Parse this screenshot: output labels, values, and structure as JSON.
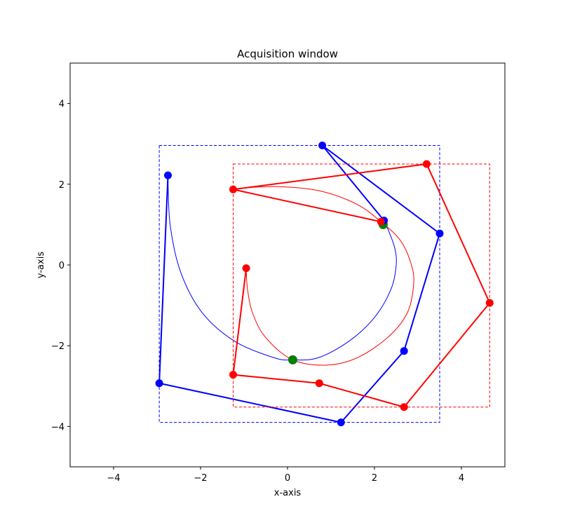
{
  "chart_data": {
    "type": "line",
    "title": "Acquisition window",
    "xlabel": "x-axis",
    "ylabel": "y-axis",
    "xlim": [
      -5,
      5
    ],
    "ylim": [
      -5,
      5
    ],
    "xticks": [
      -4,
      -2,
      0,
      2,
      4
    ],
    "yticks": [
      -4,
      -2,
      0,
      2,
      4
    ],
    "xtick_labels": [
      "−4",
      "−2",
      "0",
      "2",
      "4"
    ],
    "ytick_labels": [
      "−4",
      "−2",
      "0",
      "2",
      "4"
    ],
    "grid": false,
    "legend": "none",
    "series": [
      {
        "color": "#0000ff",
        "control_polygon": [
          [
            -2.75,
            2.22
          ],
          [
            -2.95,
            -2.93
          ],
          [
            1.23,
            -3.9
          ],
          [
            2.68,
            -2.13
          ],
          [
            3.5,
            0.78
          ],
          [
            0.8,
            2.96
          ],
          [
            2.22,
            1.1
          ]
        ],
        "curve": [
          [
            -2.75,
            2.22
          ],
          [
            -2.7,
            1.0
          ],
          [
            -2.45,
            -0.2
          ],
          [
            -1.95,
            -1.2
          ],
          [
            -1.2,
            -1.9
          ],
          [
            -0.3,
            -2.3
          ],
          [
            0.12,
            -2.35
          ],
          [
            0.7,
            -2.3
          ],
          [
            1.4,
            -1.9
          ],
          [
            2.0,
            -1.3
          ],
          [
            2.38,
            -0.6
          ],
          [
            2.5,
            0.0
          ],
          [
            2.47,
            0.4
          ],
          [
            2.35,
            0.78
          ],
          [
            2.22,
            1.1
          ]
        ],
        "bounding_box": {
          "xmin": -2.95,
          "xmax": 3.5,
          "ymin": -3.9,
          "ymax": 2.96
        },
        "marker_color": "#0000ff"
      },
      {
        "color": "#ff0000",
        "control_polygon": [
          [
            -0.95,
            -0.08
          ],
          [
            -1.25,
            -2.72
          ],
          [
            0.73,
            -2.93
          ],
          [
            2.68,
            -3.52
          ],
          [
            4.65,
            -0.94
          ],
          [
            3.2,
            2.5
          ],
          [
            -1.25,
            1.87
          ],
          [
            2.15,
            1.07
          ]
        ],
        "curve": [
          [
            -0.95,
            -0.08
          ],
          [
            -0.92,
            -0.6
          ],
          [
            -0.8,
            -1.2
          ],
          [
            -0.5,
            -1.8
          ],
          [
            0.12,
            -2.35
          ],
          [
            0.9,
            -2.48
          ],
          [
            1.6,
            -2.3
          ],
          [
            2.3,
            -1.8
          ],
          [
            2.75,
            -1.2
          ],
          [
            2.9,
            -0.5
          ],
          [
            2.85,
            0.0
          ],
          [
            2.6,
            0.6
          ],
          [
            2.15,
            1.07
          ],
          [
            1.6,
            1.5
          ],
          [
            0.8,
            1.82
          ],
          [
            0.0,
            1.93
          ],
          [
            -0.7,
            1.93
          ],
          [
            -1.25,
            1.87
          ]
        ],
        "bounding_box": {
          "xmin": -1.25,
          "xmax": 4.65,
          "ymin": -3.52,
          "ymax": 2.5
        },
        "marker_color": "#ff0000"
      }
    ],
    "intersections": {
      "color": "#008000",
      "points": [
        [
          0.12,
          -2.35
        ],
        [
          2.2,
          1.0
        ]
      ]
    }
  }
}
